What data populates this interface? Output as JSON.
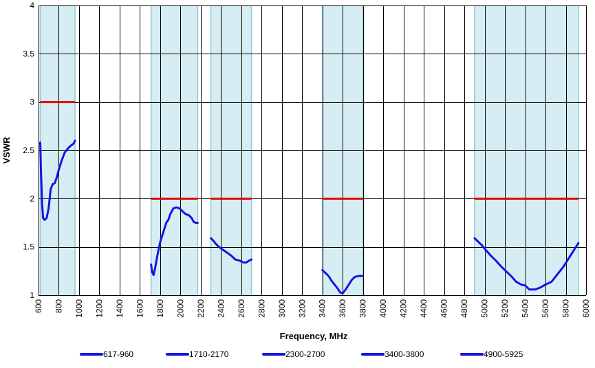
{
  "chart_data": {
    "type": "line",
    "title": "",
    "xlabel": "Frequency, MHz",
    "ylabel": "VSWR",
    "xlim": [
      600,
      6000
    ],
    "ylim": [
      1,
      4
    ],
    "xticks": [
      600,
      800,
      1000,
      1200,
      1400,
      1600,
      1800,
      2000,
      2200,
      2400,
      2600,
      2800,
      3000,
      3200,
      3400,
      3600,
      3800,
      4000,
      4200,
      4400,
      4600,
      4800,
      5000,
      5200,
      5400,
      5600,
      5800,
      6000
    ],
    "yticks": [
      1,
      1.5,
      2,
      2.5,
      3,
      3.5,
      4
    ],
    "ytick_labels": [
      "1",
      "1.5",
      "2",
      "2.5",
      "3",
      "3.5",
      "4"
    ],
    "grid": true,
    "legend_position": "bottom",
    "colors": {
      "series": "#1414e6",
      "limit": "#e60000",
      "band_fill": "#d6eef3",
      "band_edge": "#8ec9d6",
      "grid": "#000000"
    },
    "bands": [
      {
        "x0": 617,
        "x1": 960,
        "limit": 3.0
      },
      {
        "x0": 1710,
        "x1": 2170,
        "limit": 2.0
      },
      {
        "x0": 2300,
        "x1": 2700,
        "limit": 2.0
      },
      {
        "x0": 3400,
        "x1": 3800,
        "limit": 2.0
      },
      {
        "x0": 4900,
        "x1": 5925,
        "limit": 2.0
      }
    ],
    "series": [
      {
        "name": "617-960",
        "x": [
          617,
          625,
          635,
          645,
          660,
          680,
          700,
          720,
          740,
          760,
          780,
          800,
          830,
          860,
          890,
          920,
          945,
          960
        ],
        "y": [
          2.58,
          2.25,
          1.95,
          1.8,
          1.78,
          1.8,
          1.9,
          2.1,
          2.15,
          2.16,
          2.22,
          2.3,
          2.4,
          2.48,
          2.52,
          2.55,
          2.57,
          2.6
        ]
      },
      {
        "name": "1710-2170",
        "x": [
          1710,
          1720,
          1735,
          1750,
          1770,
          1800,
          1830,
          1860,
          1880,
          1900,
          1930,
          1960,
          1990,
          2020,
          2050,
          2080,
          2110,
          2130,
          2150,
          2170
        ],
        "y": [
          1.32,
          1.24,
          1.21,
          1.28,
          1.4,
          1.55,
          1.65,
          1.75,
          1.78,
          1.84,
          1.9,
          1.91,
          1.9,
          1.87,
          1.84,
          1.83,
          1.8,
          1.76,
          1.75,
          1.75
        ]
      },
      {
        "name": "2300-2700",
        "x": [
          2300,
          2320,
          2350,
          2380,
          2420,
          2460,
          2500,
          2540,
          2580,
          2620,
          2650,
          2680,
          2700
        ],
        "y": [
          1.59,
          1.57,
          1.53,
          1.5,
          1.47,
          1.44,
          1.41,
          1.37,
          1.36,
          1.34,
          1.34,
          1.36,
          1.37
        ]
      },
      {
        "name": "3400-3800",
        "x": [
          3400,
          3430,
          3460,
          3490,
          3520,
          3550,
          3575,
          3600,
          3630,
          3660,
          3690,
          3720,
          3760,
          3800
        ],
        "y": [
          1.26,
          1.23,
          1.2,
          1.15,
          1.11,
          1.07,
          1.03,
          1.02,
          1.06,
          1.11,
          1.16,
          1.19,
          1.2,
          1.2
        ]
      },
      {
        "name": "4900-5925",
        "x": [
          4900,
          4930,
          4970,
          5010,
          5060,
          5110,
          5160,
          5210,
          5260,
          5310,
          5360,
          5400,
          5440,
          5500,
          5550,
          5600,
          5660,
          5720,
          5780,
          5840,
          5900,
          5925
        ],
        "y": [
          1.59,
          1.56,
          1.52,
          1.47,
          1.41,
          1.36,
          1.3,
          1.25,
          1.2,
          1.14,
          1.11,
          1.1,
          1.06,
          1.06,
          1.08,
          1.11,
          1.14,
          1.22,
          1.3,
          1.4,
          1.5,
          1.54
        ]
      }
    ]
  }
}
